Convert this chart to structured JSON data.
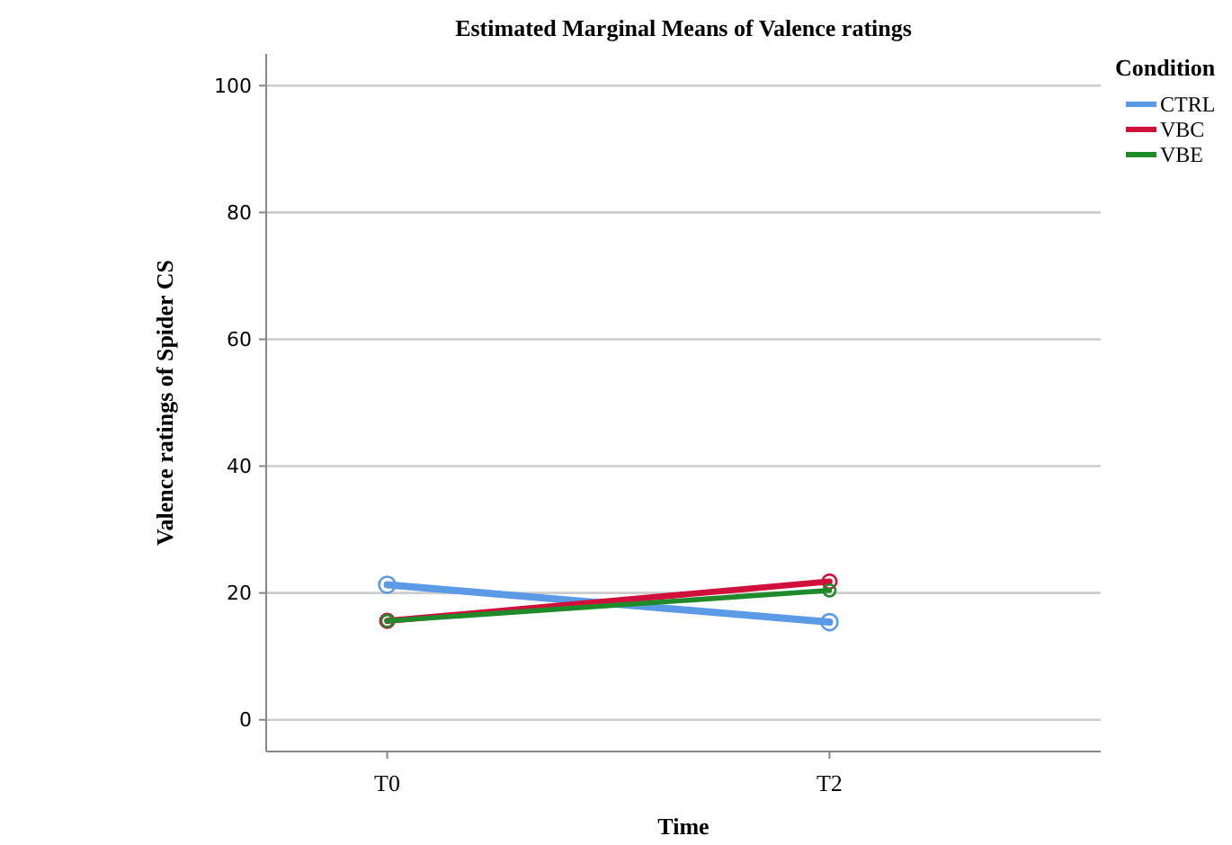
{
  "chart_data": {
    "type": "line",
    "title": "Estimated Marginal Means of Valence ratings",
    "xlabel": "Time",
    "ylabel": "Valence ratings of Spider CS",
    "legend_title": "Condition",
    "categories": [
      "T0",
      "T2"
    ],
    "series": [
      {
        "name": "CTRL",
        "color": "#5b9be6",
        "values": [
          21.3,
          15.4
        ]
      },
      {
        "name": "VBC",
        "color": "#d0103a",
        "values": [
          15.6,
          21.8
        ]
      },
      {
        "name": "VBE",
        "color": "#1f8a2a",
        "values": [
          15.6,
          20.4
        ]
      }
    ],
    "ylim": [
      -5,
      105
    ],
    "yticks": [
      0,
      20,
      40,
      60,
      80,
      100
    ],
    "grid": "y",
    "legend": "right",
    "marker": "circle",
    "line_style": "solid"
  }
}
